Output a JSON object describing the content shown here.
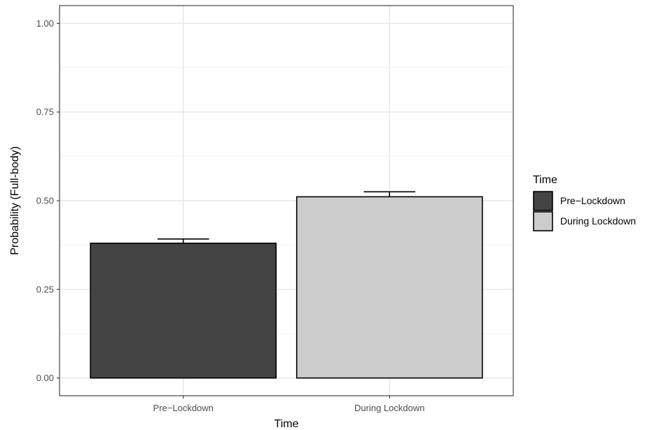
{
  "chart_data": {
    "type": "bar",
    "title": "",
    "xlabel": "Time",
    "ylabel": "Probability (Full-body)",
    "categories": [
      "Pre−Lockdown",
      "During Lockdown"
    ],
    "values": [
      0.38,
      0.511
    ],
    "error_upper": [
      0.392,
      0.525
    ],
    "ylim": [
      0,
      1.0
    ],
    "yticks": [
      0.0,
      0.25,
      0.5,
      0.75,
      1.0
    ],
    "ytick_labels": [
      "0.00",
      "0.25",
      "0.50",
      "0.75",
      "1.00"
    ],
    "grid": true,
    "legend": {
      "title": "Time",
      "position": "right",
      "entries": [
        {
          "label": "Pre−Lockdown",
          "color": "#444444"
        },
        {
          "label": "During Lockdown",
          "color": "#cccccc"
        }
      ]
    },
    "colors": [
      "#444444",
      "#cccccc"
    ]
  }
}
